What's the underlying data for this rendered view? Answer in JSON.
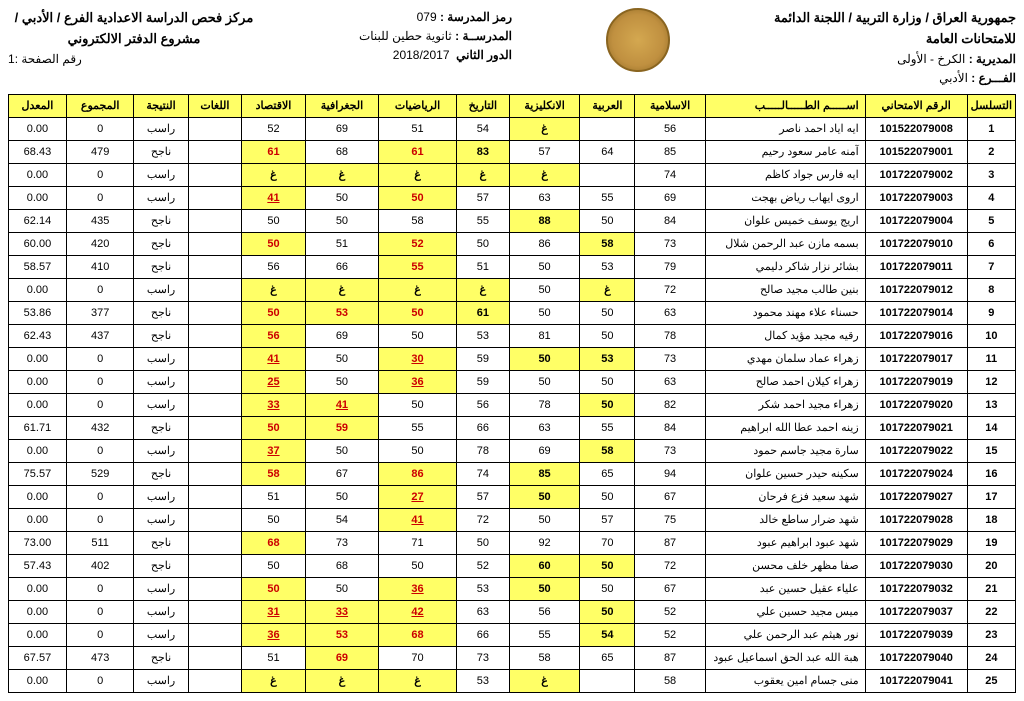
{
  "header": {
    "right_line1": "جمهورية العراق / وزارة التربية / اللجنة الدائمة للامتحانات العامة",
    "right_line2_label": "المديرية :",
    "right_line2_value": "الكرخ - الأولى",
    "right_line3_label": "الفـــرع :",
    "right_line3_value": "الأدبي",
    "center_line1_label": "رمز المدرسة :",
    "center_line1_value": "079",
    "center_line2_label": "المدرســة :",
    "center_line2_value": "ثانوية حطين للبنات",
    "center_line3_label": "الدور الثاني",
    "center_line3_value": "2018/2017",
    "left_line1": "مركز فحص الدراسة الاعدادية الفرع / الأدبي / مشروع الدفتر الالكتروني",
    "left_line2": "رقم الصفحة :1"
  },
  "columns": [
    "التسلسل",
    "الرقم الامتحاني",
    "اســـــم الطـــــالـــــب",
    "الاسلامية",
    "العربية",
    "الانكليزية",
    "التاريخ",
    "الرياضيات",
    "الجغرافية",
    "الاقتصاد",
    "اللغات",
    "النتيجة",
    "المجموع",
    "المعدل"
  ],
  "rows": [
    {
      "seq": "1",
      "exam": "101522079008",
      "name": "ايه اياد احمد ناصر",
      "c": [
        "56",
        "",
        "غ|h",
        "54",
        "51",
        "69",
        "52",
        "",
        "راسب",
        "0",
        "0.00"
      ]
    },
    {
      "seq": "2",
      "exam": "101522079001",
      "name": "آمنه عامر سعود رحيم",
      "c": [
        "85",
        "64",
        "57",
        "83|h",
        "61|hr",
        "68",
        "61|hr",
        "",
        "ناجح",
        "479",
        "68.43"
      ]
    },
    {
      "seq": "3",
      "exam": "101722079002",
      "name": "ايه فارس جواد كاظم",
      "c": [
        "74",
        "",
        "غ|h",
        "غ|h",
        "غ|h",
        "غ|h",
        "غ|h",
        "",
        "راسب",
        "0",
        "0.00"
      ]
    },
    {
      "seq": "4",
      "exam": "101722079003",
      "name": "اروى ايهاب رياض بهجت",
      "c": [
        "69",
        "55",
        "63",
        "57",
        "50|hr",
        "50",
        "41|hru",
        "",
        "راسب",
        "0",
        "0.00"
      ]
    },
    {
      "seq": "5",
      "exam": "101722079004",
      "name": "اريج يوسف خميس علوان",
      "c": [
        "84",
        "50",
        "88|h",
        "55",
        "58",
        "50",
        "50",
        "",
        "ناجح",
        "435",
        "62.14"
      ]
    },
    {
      "seq": "6",
      "exam": "101722079010",
      "name": "بسمه مازن عبد الرحمن شلال",
      "c": [
        "73",
        "58|h",
        "86",
        "50",
        "52|hr",
        "51",
        "50|hr",
        "",
        "ناجح",
        "420",
        "60.00"
      ]
    },
    {
      "seq": "7",
      "exam": "101722079011",
      "name": "بشائر نزار شاكر دليمي",
      "c": [
        "79",
        "53",
        "50",
        "51",
        "55|hr",
        "66",
        "56",
        "",
        "ناجح",
        "410",
        "58.57"
      ]
    },
    {
      "seq": "8",
      "exam": "101722079012",
      "name": "بنين طالب مجيد صالح",
      "c": [
        "72",
        "غ|h",
        "50",
        "غ|h",
        "غ|h",
        "غ|h",
        "غ|h",
        "",
        "راسب",
        "0",
        "0.00"
      ]
    },
    {
      "seq": "9",
      "exam": "101722079014",
      "name": "حسناء علاء مهند محمود",
      "c": [
        "63",
        "50",
        "50",
        "61|h",
        "50|hr",
        "53|hr",
        "50|hr",
        "",
        "ناجح",
        "377",
        "53.86"
      ]
    },
    {
      "seq": "10",
      "exam": "101722079016",
      "name": "رقيه مجيد مؤيد كمال",
      "c": [
        "78",
        "50",
        "81",
        "53",
        "50",
        "69",
        "56|hr",
        "",
        "ناجح",
        "437",
        "62.43"
      ]
    },
    {
      "seq": "11",
      "exam": "101722079017",
      "name": "زهراء عماد سلمان مهدي",
      "c": [
        "73",
        "53|h",
        "50|h",
        "59",
        "30|hru",
        "50",
        "41|hru",
        "",
        "راسب",
        "0",
        "0.00"
      ]
    },
    {
      "seq": "12",
      "exam": "101722079019",
      "name": "زهراء كيلان احمد صالح",
      "c": [
        "63",
        "50",
        "50",
        "59",
        "36|hru",
        "50",
        "25|hru",
        "",
        "راسب",
        "0",
        "0.00"
      ]
    },
    {
      "seq": "13",
      "exam": "101722079020",
      "name": "زهراء مجيد احمد شكر",
      "c": [
        "82",
        "50|h",
        "78",
        "56",
        "50",
        "41|hru",
        "33|hru",
        "",
        "راسب",
        "0",
        "0.00"
      ]
    },
    {
      "seq": "14",
      "exam": "101722079021",
      "name": "زينه احمد عطا الله ابراهيم",
      "c": [
        "84",
        "55",
        "63",
        "66",
        "55",
        "59|hr",
        "50|hr",
        "",
        "ناجح",
        "432",
        "61.71"
      ]
    },
    {
      "seq": "15",
      "exam": "101722079022",
      "name": "سارة مجيد جاسم حمود",
      "c": [
        "73",
        "58|h",
        "69",
        "78",
        "50",
        "50",
        "37|hru",
        "",
        "راسب",
        "0",
        "0.00"
      ]
    },
    {
      "seq": "16",
      "exam": "101722079024",
      "name": "سكينه حيدر حسين علوان",
      "c": [
        "94",
        "65",
        "85|h",
        "74",
        "86|hr",
        "67",
        "58|hr",
        "",
        "ناجح",
        "529",
        "75.57"
      ]
    },
    {
      "seq": "17",
      "exam": "101722079027",
      "name": "شهد سعيد فزع فرحان",
      "c": [
        "67",
        "50",
        "50|h",
        "57",
        "27|hru",
        "50",
        "51",
        "",
        "راسب",
        "0",
        "0.00"
      ]
    },
    {
      "seq": "18",
      "exam": "101722079028",
      "name": "شهد ضرار ساطع خالد",
      "c": [
        "75",
        "57",
        "50",
        "72",
        "41|hru",
        "54",
        "50",
        "",
        "راسب",
        "0",
        "0.00"
      ]
    },
    {
      "seq": "19",
      "exam": "101722079029",
      "name": "شهد عبود ابراهيم عبود",
      "c": [
        "87",
        "70",
        "92",
        "50",
        "71",
        "73",
        "68|hr",
        "",
        "ناجح",
        "511",
        "73.00"
      ]
    },
    {
      "seq": "20",
      "exam": "101722079030",
      "name": "صفا مظهر خلف محسن",
      "c": [
        "72",
        "50|h",
        "60|h",
        "52",
        "50",
        "68",
        "50",
        "",
        "ناجح",
        "402",
        "57.43"
      ]
    },
    {
      "seq": "21",
      "exam": "101722079032",
      "name": "علياء عقيل حسين عبد",
      "c": [
        "67",
        "50",
        "50|h",
        "53",
        "36|hru",
        "50",
        "50|hr",
        "",
        "راسب",
        "0",
        "0.00"
      ]
    },
    {
      "seq": "22",
      "exam": "101722079037",
      "name": "ميس مجيد حسين علي",
      "c": [
        "52",
        "50|h",
        "56",
        "63",
        "42|hru",
        "33|hru",
        "31|hru",
        "",
        "راسب",
        "0",
        "0.00"
      ]
    },
    {
      "seq": "23",
      "exam": "101722079039",
      "name": "نور هيثم عبد الرحمن علي",
      "c": [
        "52",
        "54|h",
        "55",
        "66",
        "68|hr",
        "53|hr",
        "36|hru",
        "",
        "راسب",
        "0",
        "0.00"
      ]
    },
    {
      "seq": "24",
      "exam": "101722079040",
      "name": "هبة الله عبد الحق اسماعيل عبود",
      "c": [
        "87",
        "65",
        "58",
        "73",
        "70",
        "69|hr",
        "51",
        "",
        "ناجح",
        "473",
        "67.57"
      ]
    },
    {
      "seq": "25",
      "exam": "101722079041",
      "name": "منى جسام امين يعقوب",
      "c": [
        "58",
        "",
        "غ|h",
        "53",
        "غ|h",
        "غ|h",
        "غ|h",
        "",
        "راسب",
        "0",
        "0.00"
      ]
    }
  ]
}
